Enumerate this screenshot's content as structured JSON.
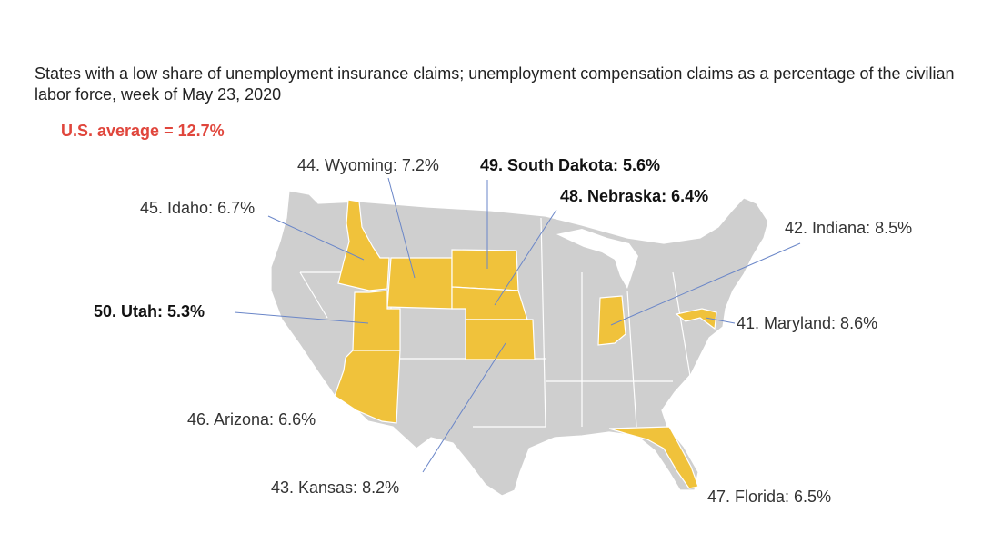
{
  "subtitle": "States with a low share of unemployment insurance claims; unemployment compensation claims as a percentage of the civilian labor force,  week of May 23, 2020",
  "average_label": "U.S. average = 12.7%",
  "colors": {
    "highlight": "#f0c23b",
    "base": "#cfcfcf",
    "border": "#ffffff",
    "leader": "#6a86c8",
    "average": "#e0463c"
  },
  "highlighted_states": [
    {
      "rank": 41,
      "state": "Maryland",
      "value": 8.6,
      "label": "41. Maryland: 8.6%",
      "bold": false
    },
    {
      "rank": 42,
      "state": "Indiana",
      "value": 8.5,
      "label": "42. Indiana: 8.5%",
      "bold": false
    },
    {
      "rank": 43,
      "state": "Kansas",
      "value": 8.2,
      "label": "43. Kansas: 8.2%",
      "bold": false
    },
    {
      "rank": 44,
      "state": "Wyoming",
      "value": 7.2,
      "label": "44. Wyoming: 7.2%",
      "bold": false
    },
    {
      "rank": 45,
      "state": "Idaho",
      "value": 6.7,
      "label": "45. Idaho: 6.7%",
      "bold": false
    },
    {
      "rank": 46,
      "state": "Arizona",
      "value": 6.6,
      "label": "46. Arizona: 6.6%",
      "bold": false
    },
    {
      "rank": 47,
      "state": "Florida",
      "value": 6.5,
      "label": "47. Florida: 6.5%",
      "bold": false
    },
    {
      "rank": 48,
      "state": "Nebraska",
      "value": 6.4,
      "label": "48. Nebraska: 6.4%",
      "bold": true
    },
    {
      "rank": 49,
      "state": "South Dakota",
      "value": 5.6,
      "label": "49. South Dakota: 5.6%",
      "bold": true
    },
    {
      "rank": 50,
      "state": "Utah",
      "value": 5.3,
      "label": "50. Utah: 5.3%",
      "bold": true
    }
  ]
}
